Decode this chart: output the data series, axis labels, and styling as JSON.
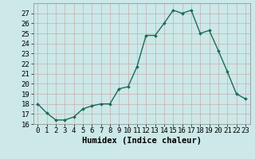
{
  "x": [
    0,
    1,
    2,
    3,
    4,
    5,
    6,
    7,
    8,
    9,
    10,
    11,
    12,
    13,
    14,
    15,
    16,
    17,
    18,
    19,
    20,
    21,
    22,
    23
  ],
  "y": [
    18.0,
    17.1,
    16.4,
    16.4,
    16.7,
    17.5,
    17.8,
    18.0,
    18.0,
    19.5,
    19.7,
    21.7,
    24.8,
    24.8,
    26.0,
    27.3,
    27.0,
    27.3,
    25.0,
    25.3,
    23.3,
    21.2,
    19.0,
    18.5
  ],
  "line_color": "#1a6b5a",
  "marker": "D",
  "marker_size": 2.0,
  "bg_color": "#cce8e8",
  "grid_color": "#b8d8d8",
  "xlabel": "Humidex (Indice chaleur)",
  "ylim": [
    16,
    28
  ],
  "xlim": [
    -0.5,
    23.5
  ],
  "yticks": [
    16,
    17,
    18,
    19,
    20,
    21,
    22,
    23,
    24,
    25,
    26,
    27
  ],
  "xticks": [
    0,
    1,
    2,
    3,
    4,
    5,
    6,
    7,
    8,
    9,
    10,
    11,
    12,
    13,
    14,
    15,
    16,
    17,
    18,
    19,
    20,
    21,
    22,
    23
  ],
  "xlabel_fontsize": 7.5,
  "tick_fontsize": 6.5,
  "line_width": 1.0
}
